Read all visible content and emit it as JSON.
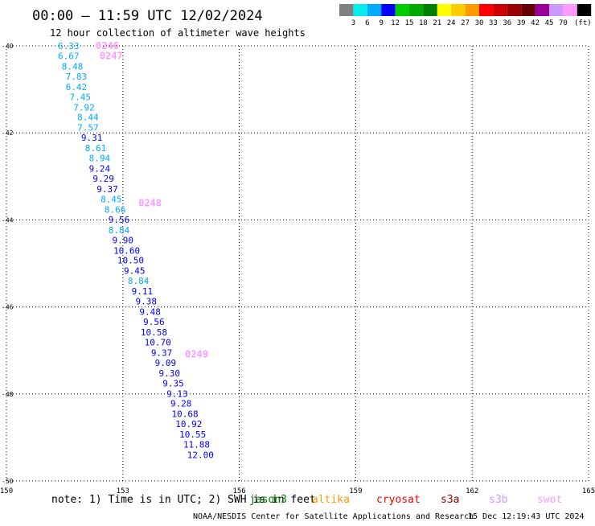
{
  "title": "00:00 — 11:59 UTC 12/02/2024",
  "subtitle": "12 hour collection of altimeter wave heights",
  "legend": {
    "colors": [
      "#808080",
      "#00eeee",
      "#00aaff",
      "#0000ff",
      "#00cc00",
      "#00aa00",
      "#008000",
      "#ffff00",
      "#ffcc00",
      "#ff9900",
      "#ff0000",
      "#cc0000",
      "#990000",
      "#660000",
      "#990099",
      "#cc99ff",
      "#ff99ff",
      "#000000"
    ],
    "labels": [
      "3",
      "6",
      "9",
      "12",
      "15",
      "18",
      "21",
      "24",
      "27",
      "30",
      "33",
      "36",
      "39",
      "42",
      "45",
      "70"
    ],
    "unit": "(ft)"
  },
  "note": "note: 1) Time is in UTC; 2) SWH is in feet",
  "satellites": [
    {
      "name": "jason3",
      "color": "#008000"
    },
    {
      "name": "altika",
      "color": "#ff9900"
    },
    {
      "name": "cryosat",
      "color": "#ff0000"
    },
    {
      "name": "s3a",
      "color": "#990000"
    },
    {
      "name": "s3b",
      "color": "#cc99ff"
    },
    {
      "name": "swot",
      "color": "#ff99ff"
    }
  ],
  "footer": {
    "agency": "NOAA/NESDIS Center for Satellite Applications and Research",
    "timestamp": "15 Dec 12:19:43 UTC 2024"
  },
  "map": {
    "lon_ticks": [
      "150",
      "153",
      "156",
      "159",
      "162",
      "165"
    ],
    "lat_ticks": [
      "-40",
      "-42",
      "-44",
      "-46",
      "-48",
      "-50"
    ],
    "lon_range": [
      150,
      165
    ],
    "lat_range": [
      -40,
      -50
    ],
    "grid": "dotted",
    "time_labels": [
      {
        "text": "0246",
        "lon": 152.3,
        "lat": -40.0,
        "color": "#ff99ff"
      },
      {
        "text": "0247",
        "lon": 152.4,
        "lat": -40.23,
        "color": "#ff99ff"
      },
      {
        "text": "0248",
        "lon": 153.4,
        "lat": -43.61,
        "color": "#ff99ff"
      },
      {
        "text": "0249",
        "lon": 154.6,
        "lat": -47.09,
        "color": "#ff99ff"
      }
    ],
    "swh_points": [
      {
        "value": "6.33",
        "lon": 151.6,
        "lat": -40.0,
        "color": "#00aaff"
      },
      {
        "value": "6.67",
        "lon": 151.6,
        "lat": -40.23,
        "color": "#00aaff"
      },
      {
        "value": "8.48",
        "lon": 151.7,
        "lat": -40.47,
        "color": "#00aaff"
      },
      {
        "value": "7.83",
        "lon": 151.8,
        "lat": -40.7,
        "color": "#00aaff"
      },
      {
        "value": "6.42",
        "lon": 151.8,
        "lat": -40.94,
        "color": "#00aaff"
      },
      {
        "value": "7.45",
        "lon": 151.9,
        "lat": -41.17,
        "color": "#00aaff"
      },
      {
        "value": "7.92",
        "lon": 152.0,
        "lat": -41.41,
        "color": "#00aaff"
      },
      {
        "value": "8.44",
        "lon": 152.1,
        "lat": -41.64,
        "color": "#00aaff"
      },
      {
        "value": "7.57",
        "lon": 152.1,
        "lat": -41.88,
        "color": "#00aaff"
      },
      {
        "value": "9.31",
        "lon": 152.2,
        "lat": -42.11,
        "color": "#0000ff"
      },
      {
        "value": "8.61",
        "lon": 152.3,
        "lat": -42.35,
        "color": "#00aaff"
      },
      {
        "value": "8.94",
        "lon": 152.4,
        "lat": -42.58,
        "color": "#00aaff"
      },
      {
        "value": "9.24",
        "lon": 152.4,
        "lat": -42.82,
        "color": "#0000ff"
      },
      {
        "value": "9.29",
        "lon": 152.5,
        "lat": -43.05,
        "color": "#0000ff"
      },
      {
        "value": "9.37",
        "lon": 152.6,
        "lat": -43.29,
        "color": "#0000ff"
      },
      {
        "value": "8.45",
        "lon": 152.7,
        "lat": -43.52,
        "color": "#00aaff"
      },
      {
        "value": "8.66",
        "lon": 152.8,
        "lat": -43.76,
        "color": "#00aaff"
      },
      {
        "value": "9.56",
        "lon": 152.9,
        "lat": -43.99,
        "color": "#0000ff"
      },
      {
        "value": "8.84",
        "lon": 152.9,
        "lat": -44.23,
        "color": "#00aaff"
      },
      {
        "value": "9.90",
        "lon": 153.0,
        "lat": -44.46,
        "color": "#0000ff"
      },
      {
        "value": "10.60",
        "lon": 153.1,
        "lat": -44.7,
        "color": "#0000ff"
      },
      {
        "value": "10.50",
        "lon": 153.2,
        "lat": -44.93,
        "color": "#0000ff"
      },
      {
        "value": "9.45",
        "lon": 153.3,
        "lat": -45.17,
        "color": "#0000ff"
      },
      {
        "value": "8.84",
        "lon": 153.4,
        "lat": -45.4,
        "color": "#00aaff"
      },
      {
        "value": "9.11",
        "lon": 153.5,
        "lat": -45.64,
        "color": "#0000ff"
      },
      {
        "value": "9.38",
        "lon": 153.6,
        "lat": -45.87,
        "color": "#0000ff"
      },
      {
        "value": "9.48",
        "lon": 153.7,
        "lat": -46.11,
        "color": "#0000ff"
      },
      {
        "value": "9.56",
        "lon": 153.8,
        "lat": -46.34,
        "color": "#0000ff"
      },
      {
        "value": "10.58",
        "lon": 153.8,
        "lat": -46.58,
        "color": "#0000ff"
      },
      {
        "value": "10.70",
        "lon": 153.9,
        "lat": -46.81,
        "color": "#0000ff"
      },
      {
        "value": "9.37",
        "lon": 154.0,
        "lat": -47.05,
        "color": "#0000ff"
      },
      {
        "value": "9.09",
        "lon": 154.1,
        "lat": -47.28,
        "color": "#0000ff"
      },
      {
        "value": "9.30",
        "lon": 154.2,
        "lat": -47.52,
        "color": "#0000ff"
      },
      {
        "value": "9.35",
        "lon": 154.3,
        "lat": -47.75,
        "color": "#0000ff"
      },
      {
        "value": "9.13",
        "lon": 154.4,
        "lat": -47.99,
        "color": "#0000ff"
      },
      {
        "value": "9.28",
        "lon": 154.5,
        "lat": -48.22,
        "color": "#0000ff"
      },
      {
        "value": "10.68",
        "lon": 154.6,
        "lat": -48.46,
        "color": "#0000ff"
      },
      {
        "value": "10.92",
        "lon": 154.7,
        "lat": -48.69,
        "color": "#0000ff"
      },
      {
        "value": "10.55",
        "lon": 154.8,
        "lat": -48.93,
        "color": "#0000ff"
      },
      {
        "value": "11.88",
        "lon": 154.9,
        "lat": -49.16,
        "color": "#0000ff"
      },
      {
        "value": "12.00",
        "lon": 155.0,
        "lat": -49.4,
        "color": "#0000ff"
      }
    ]
  }
}
